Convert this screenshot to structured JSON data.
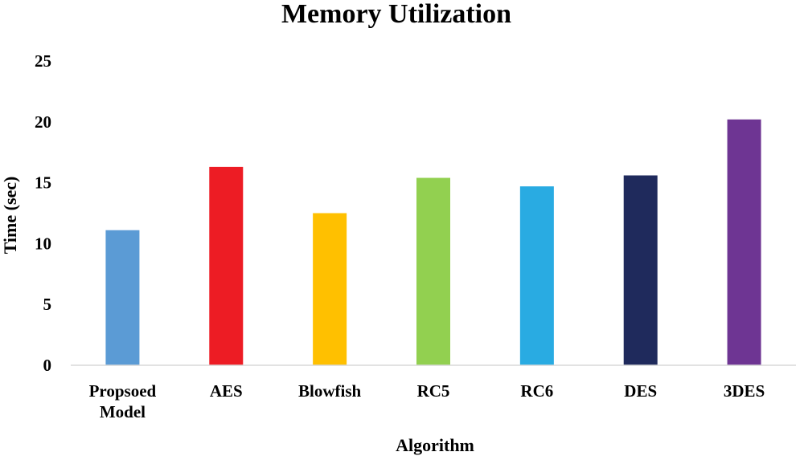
{
  "chart_data": {
    "type": "bar",
    "title": "Memory Utilization",
    "xlabel": "Algorithm",
    "ylabel": "Time (sec)",
    "ylim": [
      0,
      25
    ],
    "yticks": [
      0,
      5,
      10,
      15,
      20,
      25
    ],
    "grid": false,
    "legend": "none",
    "categories": [
      "Propsoed Model",
      "AES",
      "Blowfish",
      "RC5",
      "RC6",
      "DES",
      "3DES"
    ],
    "category_lines": [
      [
        "Propsoed",
        "Model"
      ],
      [
        "AES"
      ],
      [
        "Blowfish"
      ],
      [
        "RC5"
      ],
      [
        "RC6"
      ],
      [
        "DES"
      ],
      [
        "3DES"
      ]
    ],
    "values": [
      11.1,
      16.3,
      12.5,
      15.4,
      14.7,
      15.6,
      20.2
    ],
    "colors": [
      "#5B9BD5",
      "#ED1C24",
      "#FFC000",
      "#92D050",
      "#29ABE2",
      "#1F2A5C",
      "#6E3593"
    ]
  }
}
